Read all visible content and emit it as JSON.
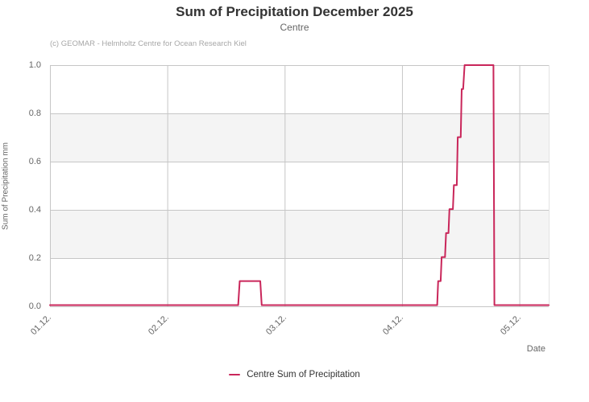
{
  "title": "Sum of Precipitation December 2025",
  "subtitle": "Centre",
  "credits": "(c) GEOMAR - Helmholtz Centre for Ocean Research Kiel",
  "colors": {
    "line": "#C9265A",
    "title_text": "#333333",
    "subtitle_text": "#666666",
    "credits_text": "#A7A7A7",
    "axis_label": "#666666",
    "gridline": "#C6C6C6",
    "band": "#F4F4F4",
    "plot_border": "#E3E3E3",
    "legend_text": "#333333"
  },
  "legend": {
    "items": [
      {
        "label": "Centre Sum of Precipitation",
        "color": "#C9265A"
      }
    ]
  },
  "chart_data": {
    "type": "line",
    "title": "Sum of Precipitation December 2025",
    "subtitle": "Centre",
    "xlabel": "Date",
    "ylabel": "Sum of Precipitation mm",
    "x_unit": "hours since 01.12. 00:00",
    "xlim_hours": [
      0,
      102
    ],
    "ylim": [
      0,
      1.0
    ],
    "grid": true,
    "alternate_bands": [
      [
        0.2,
        0.4
      ],
      [
        0.6,
        0.8
      ]
    ],
    "legend_position": "bottom-center",
    "x_ticks": [
      {
        "hours": 0,
        "label": "01.12."
      },
      {
        "hours": 24,
        "label": "02.12."
      },
      {
        "hours": 48,
        "label": "03.12."
      },
      {
        "hours": 72,
        "label": "04.12."
      },
      {
        "hours": 96,
        "label": "05.12."
      }
    ],
    "y_ticks": [
      {
        "value": 0.0,
        "label": "0.0"
      },
      {
        "value": 0.2,
        "label": "0.2"
      },
      {
        "value": 0.4,
        "label": "0.4"
      },
      {
        "value": 0.6,
        "label": "0.6"
      },
      {
        "value": 0.8,
        "label": "0.8"
      },
      {
        "value": 1.0,
        "label": "1.0"
      }
    ],
    "series": [
      {
        "name": "Centre Sum of Precipitation",
        "color": "#C9265A",
        "points_hours_mm": [
          [
            0,
            0
          ],
          [
            38.5,
            0
          ],
          [
            38.8,
            0.1
          ],
          [
            43.0,
            0.1
          ],
          [
            43.3,
            0
          ],
          [
            79.2,
            0
          ],
          [
            79.4,
            0.1
          ],
          [
            79.9,
            0.1
          ],
          [
            80.1,
            0.2
          ],
          [
            80.8,
            0.2
          ],
          [
            81.0,
            0.3
          ],
          [
            81.5,
            0.3
          ],
          [
            81.7,
            0.4
          ],
          [
            82.4,
            0.4
          ],
          [
            82.6,
            0.5
          ],
          [
            83.2,
            0.5
          ],
          [
            83.4,
            0.7
          ],
          [
            84.0,
            0.7
          ],
          [
            84.2,
            0.9
          ],
          [
            84.5,
            0.9
          ],
          [
            84.8,
            1.0
          ],
          [
            90.7,
            1.0
          ],
          [
            90.9,
            0
          ],
          [
            102,
            0
          ]
        ]
      }
    ]
  }
}
